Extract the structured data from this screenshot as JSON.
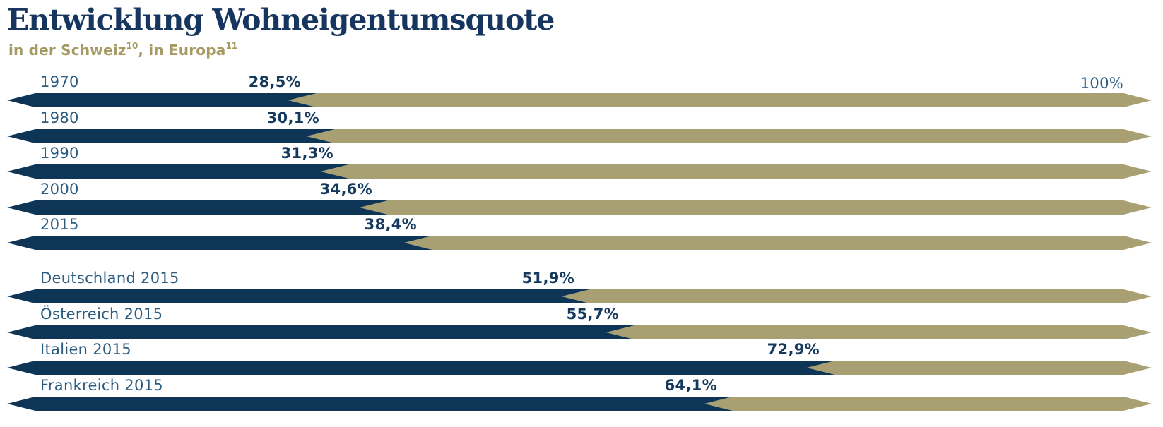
{
  "header": {
    "title": "Entwicklung Wohneigentumsquote",
    "subtitle": {
      "part1": "in der Schweiz",
      "sup1": "10",
      "part2": ", in Europa",
      "sup2": "11"
    }
  },
  "chart_data": {
    "type": "bar",
    "orientation": "horizontal",
    "title": "Entwicklung Wohneigentumsquote",
    "subtitle": "in der Schweiz (10), in Europa (11)",
    "unit": "%",
    "xlim": [
      0,
      100
    ],
    "axis_max_label": "100%",
    "grid": false,
    "legend": false,
    "colors": {
      "value_bar": "#0F3556",
      "remainder_bar": "#A89F72",
      "label_text": "#2B5B7F",
      "value_text": "#14395D",
      "title_text": "#16365F",
      "subtitle_text": "#A49A62"
    },
    "groups": [
      {
        "name": "Schweiz",
        "rows": [
          {
            "label": "1970",
            "value": 28.5,
            "display_value": "28,5%"
          },
          {
            "label": "1980",
            "value": 30.1,
            "display_value": "30,1%"
          },
          {
            "label": "1990",
            "value": 31.3,
            "display_value": "31,3%"
          },
          {
            "label": "2000",
            "value": 34.6,
            "display_value": "34,6%"
          },
          {
            "label": "2015",
            "value": 38.4,
            "display_value": "38,4%"
          }
        ]
      },
      {
        "name": "Europa",
        "rows": [
          {
            "label": "Deutschland 2015",
            "value": 51.9,
            "display_value": "51,9%"
          },
          {
            "label": "Österreich 2015",
            "value": 55.7,
            "display_value": "55,7%"
          },
          {
            "label": "Italien 2015",
            "value": 72.9,
            "display_value": "72,9%"
          },
          {
            "label": "Frankreich 2015",
            "value": 64.1,
            "display_value": "64,1%"
          }
        ]
      }
    ]
  }
}
